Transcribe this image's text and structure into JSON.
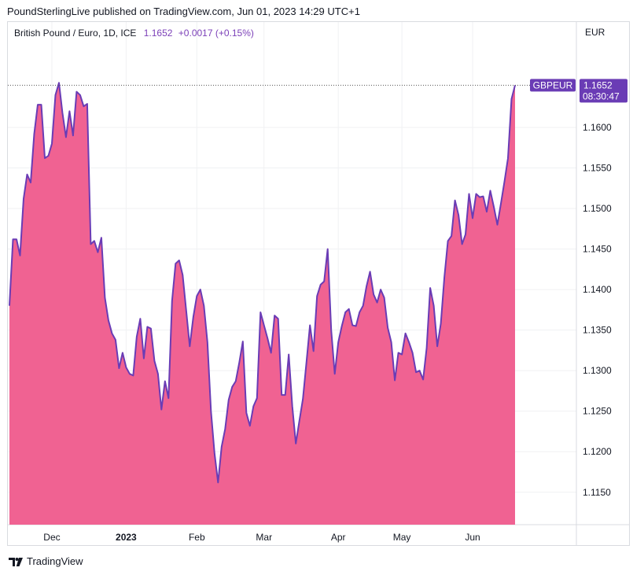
{
  "header": {
    "published": "PoundSterlingLive published on TradingView.com, Jun 01, 2023 14:29 UTC+1"
  },
  "legend": {
    "symbol": "British Pound / Euro, 1D, ICE",
    "value": "1.1652",
    "change": "+0.0017 (+0.15%)"
  },
  "axis": {
    "currency": "EUR"
  },
  "footer": {
    "brand": "TradingView"
  },
  "colors": {
    "line": "#6a3cb5",
    "fill": "#f06292",
    "grid": "#f0f1f3",
    "label_bg": "#6a3cb5"
  },
  "chart_data": {
    "type": "area",
    "series_name": "GBPEUR",
    "ylim": [
      1.111,
      1.173
    ],
    "y_ticks": [
      "1.1150",
      "1.1200",
      "1.1250",
      "1.1300",
      "1.1350",
      "1.1400",
      "1.1450",
      "1.1500",
      "1.1550",
      "1.1600"
    ],
    "y_tick_values": [
      1.115,
      1.12,
      1.125,
      1.13,
      1.135,
      1.14,
      1.145,
      1.15,
      1.155,
      1.16
    ],
    "x_tick_labels": [
      "Dec",
      "2023",
      "Feb",
      "Mar",
      "Apr",
      "May",
      "Jun"
    ],
    "x_tick_index": [
      12,
      33,
      53,
      72,
      93,
      111,
      131
    ],
    "last_value_label": "1.1652",
    "last_time_label": "08:30:47",
    "values": [
      1.138,
      1.1462,
      1.1462,
      1.1442,
      1.1512,
      1.1542,
      1.1532,
      1.1592,
      1.1628,
      1.1628,
      1.1562,
      1.1565,
      1.158,
      1.164,
      1.1655,
      1.1618,
      1.1588,
      1.162,
      1.159,
      1.1644,
      1.164,
      1.1626,
      1.1629,
      1.1456,
      1.146,
      1.1446,
      1.1464,
      1.139,
      1.1362,
      1.1346,
      1.1338,
      1.1303,
      1.1322,
      1.1304,
      1.1296,
      1.1294,
      1.1342,
      1.1364,
      1.1315,
      1.1354,
      1.1352,
      1.1312,
      1.1296,
      1.1252,
      1.1287,
      1.1266,
      1.1386,
      1.1432,
      1.1436,
      1.1418,
      1.1374,
      1.133,
      1.1366,
      1.1392,
      1.14,
      1.138,
      1.1335,
      1.125,
      1.1198,
      1.1162,
      1.1206,
      1.1228,
      1.1264,
      1.128,
      1.1287,
      1.131,
      1.1336,
      1.1248,
      1.1232,
      1.1256,
      1.1266,
      1.1372,
      1.1356,
      1.134,
      1.1322,
      1.1368,
      1.1364,
      1.127,
      1.127,
      1.132,
      1.1256,
      1.121,
      1.1238,
      1.1265,
      1.131,
      1.1356,
      1.1324,
      1.1392,
      1.1406,
      1.141,
      1.145,
      1.135,
      1.1296,
      1.1335,
      1.1355,
      1.1372,
      1.1376,
      1.1356,
      1.1355,
      1.1372,
      1.138,
      1.1404,
      1.1422,
      1.1394,
      1.1384,
      1.14,
      1.139,
      1.1353,
      1.1335,
      1.1288,
      1.1322,
      1.132,
      1.1346,
      1.1335,
      1.1322,
      1.1298,
      1.13,
      1.1289,
      1.1328,
      1.1402,
      1.138,
      1.133,
      1.1358,
      1.1415,
      1.146,
      1.1466,
      1.151,
      1.1492,
      1.1456,
      1.1468,
      1.1518,
      1.1488,
      1.1518,
      1.1514,
      1.1515,
      1.1496,
      1.1522,
      1.1502,
      1.148,
      1.1506,
      1.1533,
      1.1562,
      1.1635,
      1.1652
    ]
  }
}
